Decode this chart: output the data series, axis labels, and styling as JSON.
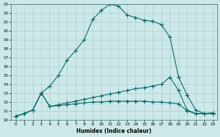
{
  "xlabel": "Humidex (Indice chaleur)",
  "xlim": [
    -0.5,
    23.5
  ],
  "ylim": [
    10,
    23
  ],
  "xticks": [
    0,
    1,
    2,
    3,
    4,
    5,
    6,
    7,
    8,
    9,
    10,
    11,
    12,
    13,
    14,
    15,
    16,
    17,
    18,
    19,
    20,
    21,
    22,
    23
  ],
  "yticks": [
    10,
    11,
    12,
    13,
    14,
    15,
    16,
    17,
    18,
    19,
    20,
    21,
    22,
    23
  ],
  "bg_color": "#cce8e8",
  "grid_color": "#aacccc",
  "line_color": "#006666",
  "line1_x": [
    0,
    1,
    2,
    3,
    4,
    5,
    6,
    7,
    8,
    9,
    10,
    11,
    12,
    13,
    14,
    15,
    16,
    17,
    18,
    19,
    20,
    21,
    22,
    23
  ],
  "line1_y": [
    10.4,
    10.7,
    11.1,
    13.0,
    13.8,
    15.0,
    16.7,
    17.8,
    19.0,
    21.3,
    22.3,
    23.0,
    22.8,
    21.8,
    21.5,
    21.2,
    21.1,
    20.7,
    19.3,
    14.8,
    12.8,
    11.1,
    10.7,
    10.8
  ],
  "line2_x": [
    0,
    1,
    2,
    3,
    4,
    5,
    6,
    7,
    8,
    9,
    10,
    11,
    12,
    13,
    14,
    15,
    16,
    17,
    18,
    19,
    20,
    21,
    22,
    23
  ],
  "line2_y": [
    10.4,
    10.7,
    11.1,
    13.0,
    11.5,
    11.7,
    11.9,
    12.1,
    12.3,
    12.5,
    12.7,
    12.9,
    13.1,
    13.3,
    13.5,
    13.6,
    13.8,
    14.0,
    14.8,
    13.3,
    11.1,
    10.7,
    10.7,
    10.7
  ],
  "line3_x": [
    0,
    1,
    2,
    3,
    4,
    5,
    6,
    7,
    8,
    9,
    10,
    11,
    12,
    13,
    14,
    15,
    16,
    17,
    18,
    19,
    20,
    21,
    22,
    23
  ],
  "line3_y": [
    10.4,
    10.7,
    11.1,
    13.0,
    11.5,
    11.6,
    11.7,
    11.8,
    11.9,
    12.0,
    12.0,
    12.1,
    12.1,
    12.1,
    12.1,
    12.1,
    12.0,
    12.0,
    11.9,
    11.8,
    11.0,
    10.7,
    10.7,
    10.7
  ]
}
